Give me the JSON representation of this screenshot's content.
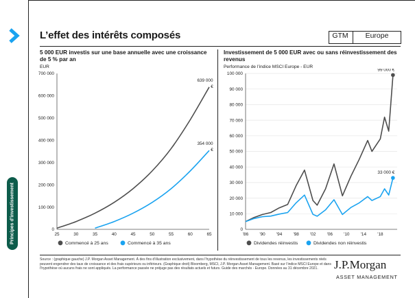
{
  "header": {
    "title": "L’effet des intérêts composés",
    "badge_label": "GTM",
    "badge_region": "Europe"
  },
  "side_tab": {
    "label": "Principes d'investissement"
  },
  "left_panel": {
    "title": "5 000 EUR investis sur une base annuelle avec une croissance de 5 % par an",
    "unit": "EUR"
  },
  "right_panel": {
    "title": "Investissement de 5 000 EUR avec ou sans réinvestissement des revenus",
    "subtitle": "Performance de l’indice MSCI Europe - EUR"
  },
  "chart_data": [
    {
      "type": "line",
      "x": [
        25,
        30,
        35,
        40,
        45,
        50,
        55,
        60,
        65
      ],
      "xlim": [
        25,
        65
      ],
      "ylim": [
        0,
        700000
      ],
      "yticks": [
        0,
        100000,
        200000,
        300000,
        400000,
        500000,
        600000,
        700000
      ],
      "ytick_labels": [
        "0",
        "100 000",
        "200 000",
        "300 000",
        "400 000",
        "500 000",
        "600 000",
        "700 000"
      ],
      "xtick_labels": [
        "25",
        "30",
        "35",
        "40",
        "45",
        "50",
        "55",
        "60",
        "65"
      ],
      "series": [
        {
          "name": "Commencé à 25 ans",
          "color": "#4d4d4d",
          "values": [
            5250,
            34900,
            72700,
            121000,
            183000,
            262000,
            363000,
            492000,
            639000
          ],
          "end_label": "639 000 €"
        },
        {
          "name": "Commencé à 35 ans",
          "color": "#1aa3f0",
          "values": [
            null,
            null,
            5250,
            34900,
            72700,
            121000,
            183000,
            262000,
            354000
          ],
          "end_label": "354 000 €"
        }
      ],
      "grid": false,
      "legend": "bottom"
    },
    {
      "type": "line",
      "x": [
        1986,
        1988,
        1990,
        1992,
        1994,
        1996,
        1998,
        2000,
        2002,
        2003,
        2005,
        2007,
        2009,
        2011,
        2013,
        2015,
        2016,
        2018,
        2019,
        2020,
        2021
      ],
      "xlim": [
        1986,
        2022
      ],
      "xtick_labels": [
        "'86",
        "'90",
        "'94",
        "'98",
        "'02",
        "'06",
        "'10",
        "'14",
        "'18"
      ],
      "ylim": [
        0,
        100000
      ],
      "yticks": [
        0,
        10000,
        20000,
        30000,
        40000,
        50000,
        60000,
        70000,
        80000,
        90000,
        100000
      ],
      "ytick_labels": [
        "0",
        "10 000",
        "20 000",
        "30 000",
        "40 000",
        "50 000",
        "60 000",
        "70 000",
        "80 000",
        "90 000",
        "100 000"
      ],
      "series": [
        {
          "name": "Dividendes réinvestis",
          "color": "#4d4d4d",
          "values": [
            5000,
            7600,
            9500,
            10800,
            13800,
            16000,
            28000,
            38000,
            18500,
            15500,
            26000,
            42000,
            21500,
            34000,
            45000,
            57000,
            50000,
            58000,
            72000,
            63000,
            99000
          ],
          "end_label": "99 000 €"
        },
        {
          "name": "Dividendes non réinvestis",
          "color": "#1aa3f0",
          "values": [
            5000,
            6900,
            8100,
            8500,
            9800,
            10800,
            17000,
            22000,
            9600,
            8400,
            12500,
            19000,
            9500,
            14000,
            17000,
            21000,
            18500,
            21000,
            26000,
            22000,
            33000
          ],
          "end_label": "33 000 €"
        }
      ],
      "grid": true,
      "legend": "bottom"
    }
  ],
  "footer": {
    "source": "Source : (graphique gauche) J.P. Morgan Asset Management. À des fins d’illustration exclusivement, dans l’hypothèse du réinvestissement de tous les revenus, les investissements réels peuvent engendrer des taux de croissance et des frais supérieurs ou inférieurs. (Graphique droit) Bloomberg, MSCI, J.P. Morgan Asset Management. Basé sur l’indice MSCI Europe et dans l’hypothèse où aucuns frais ne sont appliqués. La performance passée ne préjuge pas des résultats actuels et futurs. Guide des marchés - Europe. Données au 31 décembre 2021.",
    "brand": "J.P.Morgan",
    "brand_sub": "ASSET MANAGEMENT"
  },
  "colors": {
    "accent": "#1aa3f0",
    "dark_series": "#4d4d4d",
    "side_tab": "#0d5c4b"
  }
}
